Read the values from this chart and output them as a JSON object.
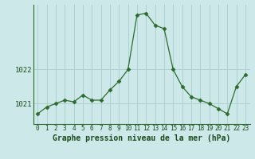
{
  "hours": [
    0,
    1,
    2,
    3,
    4,
    5,
    6,
    7,
    8,
    9,
    10,
    11,
    12,
    13,
    14,
    15,
    16,
    17,
    18,
    19,
    20,
    21,
    22,
    23
  ],
  "pressure": [
    1020.7,
    1020.9,
    1021.0,
    1021.1,
    1021.05,
    1021.25,
    1021.1,
    1021.1,
    1021.4,
    1021.65,
    1022.0,
    1023.6,
    1023.65,
    1023.3,
    1023.2,
    1022.0,
    1021.5,
    1021.2,
    1021.1,
    1021.0,
    1020.85,
    1020.7,
    1021.5,
    1021.85
  ],
  "line_color": "#2d6a2d",
  "marker": "D",
  "marker_size": 2.5,
  "bg_color": "#cce8e8",
  "grid_color": "#aacccc",
  "xlabel": "Graphe pression niveau de la mer (hPa)",
  "xlabel_color": "#1a4a1a",
  "ylabel_ticks": [
    1021,
    1022
  ],
  "ylim": [
    1020.4,
    1023.9
  ],
  "xlim": [
    -0.5,
    23.5
  ],
  "tick_color": "#1a4a1a",
  "spine_color": "#2d6a2d",
  "label_fontsize": 7.0,
  "tick_fontsize": 5.5,
  "ytick_fontsize": 6.5
}
